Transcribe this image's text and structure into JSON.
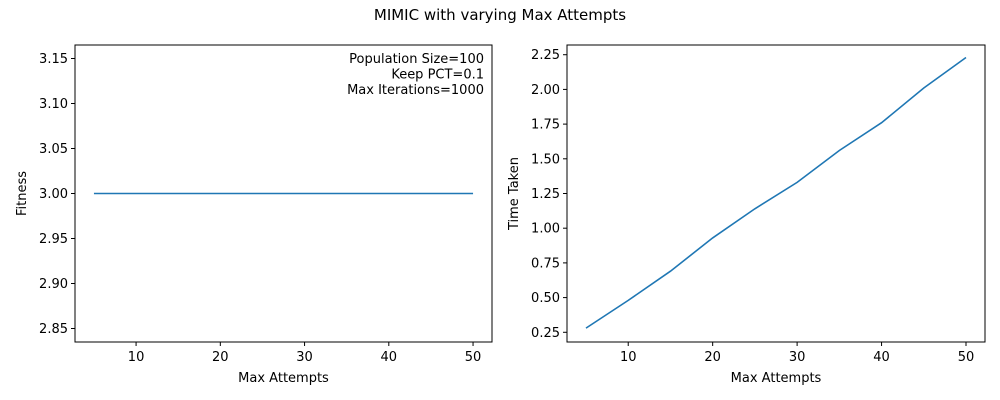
{
  "figure_title": "MIMIC with varying Max Attempts",
  "colors": {
    "series": "#1f77b4",
    "axes": "#000000",
    "background": "#ffffff"
  },
  "chart_data": [
    {
      "type": "line",
      "title": "",
      "xlabel": "Max Attempts",
      "ylabel": "Fitness",
      "xlim": [
        2.75,
        52.25
      ],
      "ylim": [
        2.835,
        3.165
      ],
      "xticks": [
        10,
        20,
        30,
        40,
        50
      ],
      "yticks": [
        2.85,
        2.9,
        2.95,
        3.0,
        3.05,
        3.1,
        3.15
      ],
      "xtick_labels": [
        "10",
        "20",
        "30",
        "40",
        "50"
      ],
      "ytick_labels": [
        "2.85",
        "2.90",
        "2.95",
        "3.00",
        "3.05",
        "3.10",
        "3.15"
      ],
      "grid": false,
      "annotation": [
        "Population Size=100",
        "Keep PCT=0.1",
        "Max Iterations=1000"
      ],
      "annotation_position": "top-right",
      "series": [
        {
          "x": [
            5,
            10,
            15,
            20,
            25,
            30,
            35,
            40,
            45,
            50
          ],
          "y": [
            3.0,
            3.0,
            3.0,
            3.0,
            3.0,
            3.0,
            3.0,
            3.0,
            3.0,
            3.0
          ]
        }
      ]
    },
    {
      "type": "line",
      "title": "",
      "xlabel": "Max Attempts",
      "ylabel": "Time Taken",
      "xlim": [
        2.75,
        52.25
      ],
      "ylim": [
        0.18,
        2.32
      ],
      "xticks": [
        10,
        20,
        30,
        40,
        50
      ],
      "yticks": [
        0.25,
        0.5,
        0.75,
        1.0,
        1.25,
        1.5,
        1.75,
        2.0,
        2.25
      ],
      "xtick_labels": [
        "10",
        "20",
        "30",
        "40",
        "50"
      ],
      "ytick_labels": [
        "0.25",
        "0.50",
        "0.75",
        "1.00",
        "1.25",
        "1.50",
        "1.75",
        "2.00",
        "2.25"
      ],
      "grid": false,
      "series": [
        {
          "x": [
            5,
            10,
            15,
            20,
            25,
            30,
            35,
            40,
            45,
            50
          ],
          "y": [
            0.28,
            0.48,
            0.69,
            0.93,
            1.14,
            1.33,
            1.56,
            1.76,
            2.01,
            2.23
          ]
        }
      ]
    }
  ]
}
